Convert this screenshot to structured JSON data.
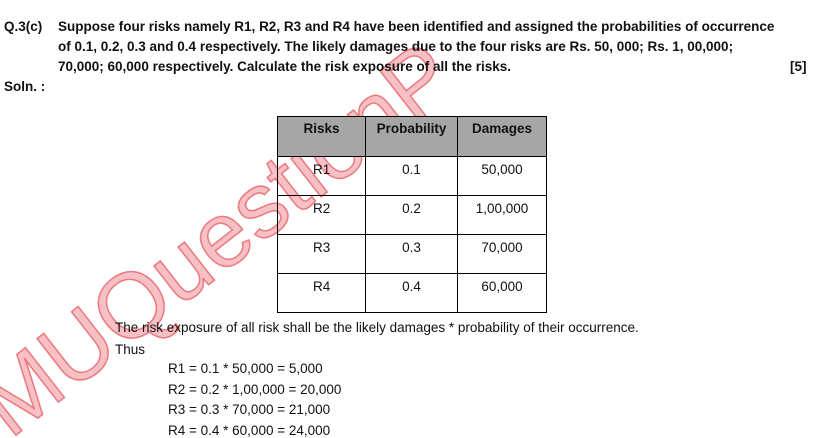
{
  "question": {
    "number": "Q.3(c)",
    "lines": [
      "Suppose four risks namely R1, R2, R3 and R4 have been identified and assigned the probabilities of occurrence",
      "of 0.1, 0.2, 0.3 and 0.4 respectively. The likely damages due to the four risks are Rs. 50, 000; Rs. 1, 00,000;",
      "70,000; 60,000 respectively. Calculate the risk exposure of all the risks."
    ],
    "marks": "[5]"
  },
  "solution_label": "Soln. :",
  "table": {
    "header": [
      "Risks",
      "Probability",
      "Damages"
    ],
    "rows": [
      [
        "R1",
        "0.1",
        "50,000"
      ],
      [
        "R2",
        "0.2",
        "1,00,000"
      ],
      [
        "R3",
        "0.3",
        "70,000"
      ],
      [
        "R4",
        "0.4",
        "60,000"
      ]
    ]
  },
  "explanation": "The risk exposure of all risk shall be the likely damages * probability of their occurrence.",
  "thus": "Thus",
  "calculations": [
    "R1 = 0.1 * 50,000 = 5,000",
    "R2 = 0.2 * 1,00,000 = 20,000",
    "R3 = 0.3 * 70,000 = 21,000",
    "R4 = 0.4 * 60,000 = 24,000"
  ],
  "watermark": "MUQuestionP"
}
